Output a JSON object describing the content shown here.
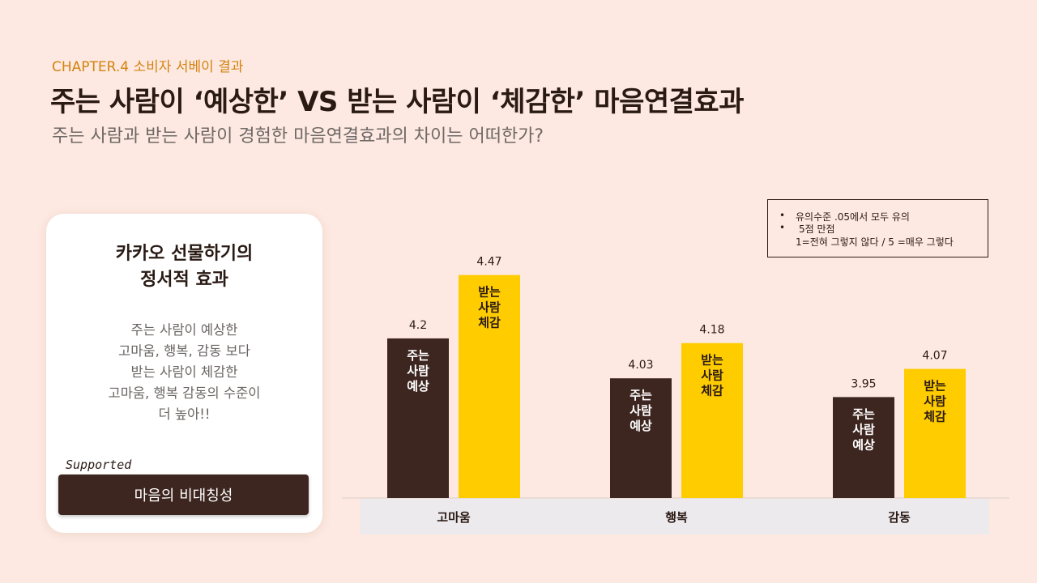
{
  "header": {
    "chapter": "CHAPTER.4 소비자 서베이 결과",
    "title": "주는 사람이 ‘예상한’ VS 받는 사람이 ‘체감한’ 마음연결효과",
    "subtitle": "주는 사람과 받는 사람이 경험한 마음연결효과의 차이는 어떠한가?"
  },
  "card": {
    "title_lines": [
      "카카오 선물하기의",
      "정서적 효과"
    ],
    "body_lines": [
      "주는 사람이 예상한",
      "고마움, 행복, 감동 보다",
      "받는 사람이 체감한",
      "고마움, 행복 감동의 수준이",
      "더 높아!!"
    ],
    "supported_label": "Supported",
    "button_label": "마음의 비대칭성"
  },
  "note": {
    "bullet1": "•",
    "line1": "유의수준 .05에서 모두 유의",
    "bullet2": "•",
    "line2": "5점 만점",
    "line3": "1=전혀 그렇지 않다 / 5 =매우 그렇다"
  },
  "chart_data": {
    "type": "bar",
    "categories": [
      "고마움",
      "행복",
      "감동"
    ],
    "series": [
      {
        "name": "주는 사람 예상",
        "label_lines": [
          "주는",
          "사람",
          "예상"
        ],
        "color": "#3e2620",
        "text_color": "#ffffff",
        "values": [
          4.2,
          4.03,
          3.95
        ]
      },
      {
        "name": "받는 사람 체감",
        "label_lines": [
          "받는",
          "사람",
          "체감"
        ],
        "color": "#ffcc00",
        "text_color": "#2a1a14",
        "values": [
          4.47,
          4.18,
          4.07
        ]
      }
    ],
    "value_labels": [
      [
        "4.2",
        "4.03",
        "3.95"
      ],
      [
        "4.47",
        "4.18",
        "4.07"
      ]
    ],
    "ylim": [
      3.52,
      4.6
    ],
    "category_band_color": "#eceaed"
  }
}
